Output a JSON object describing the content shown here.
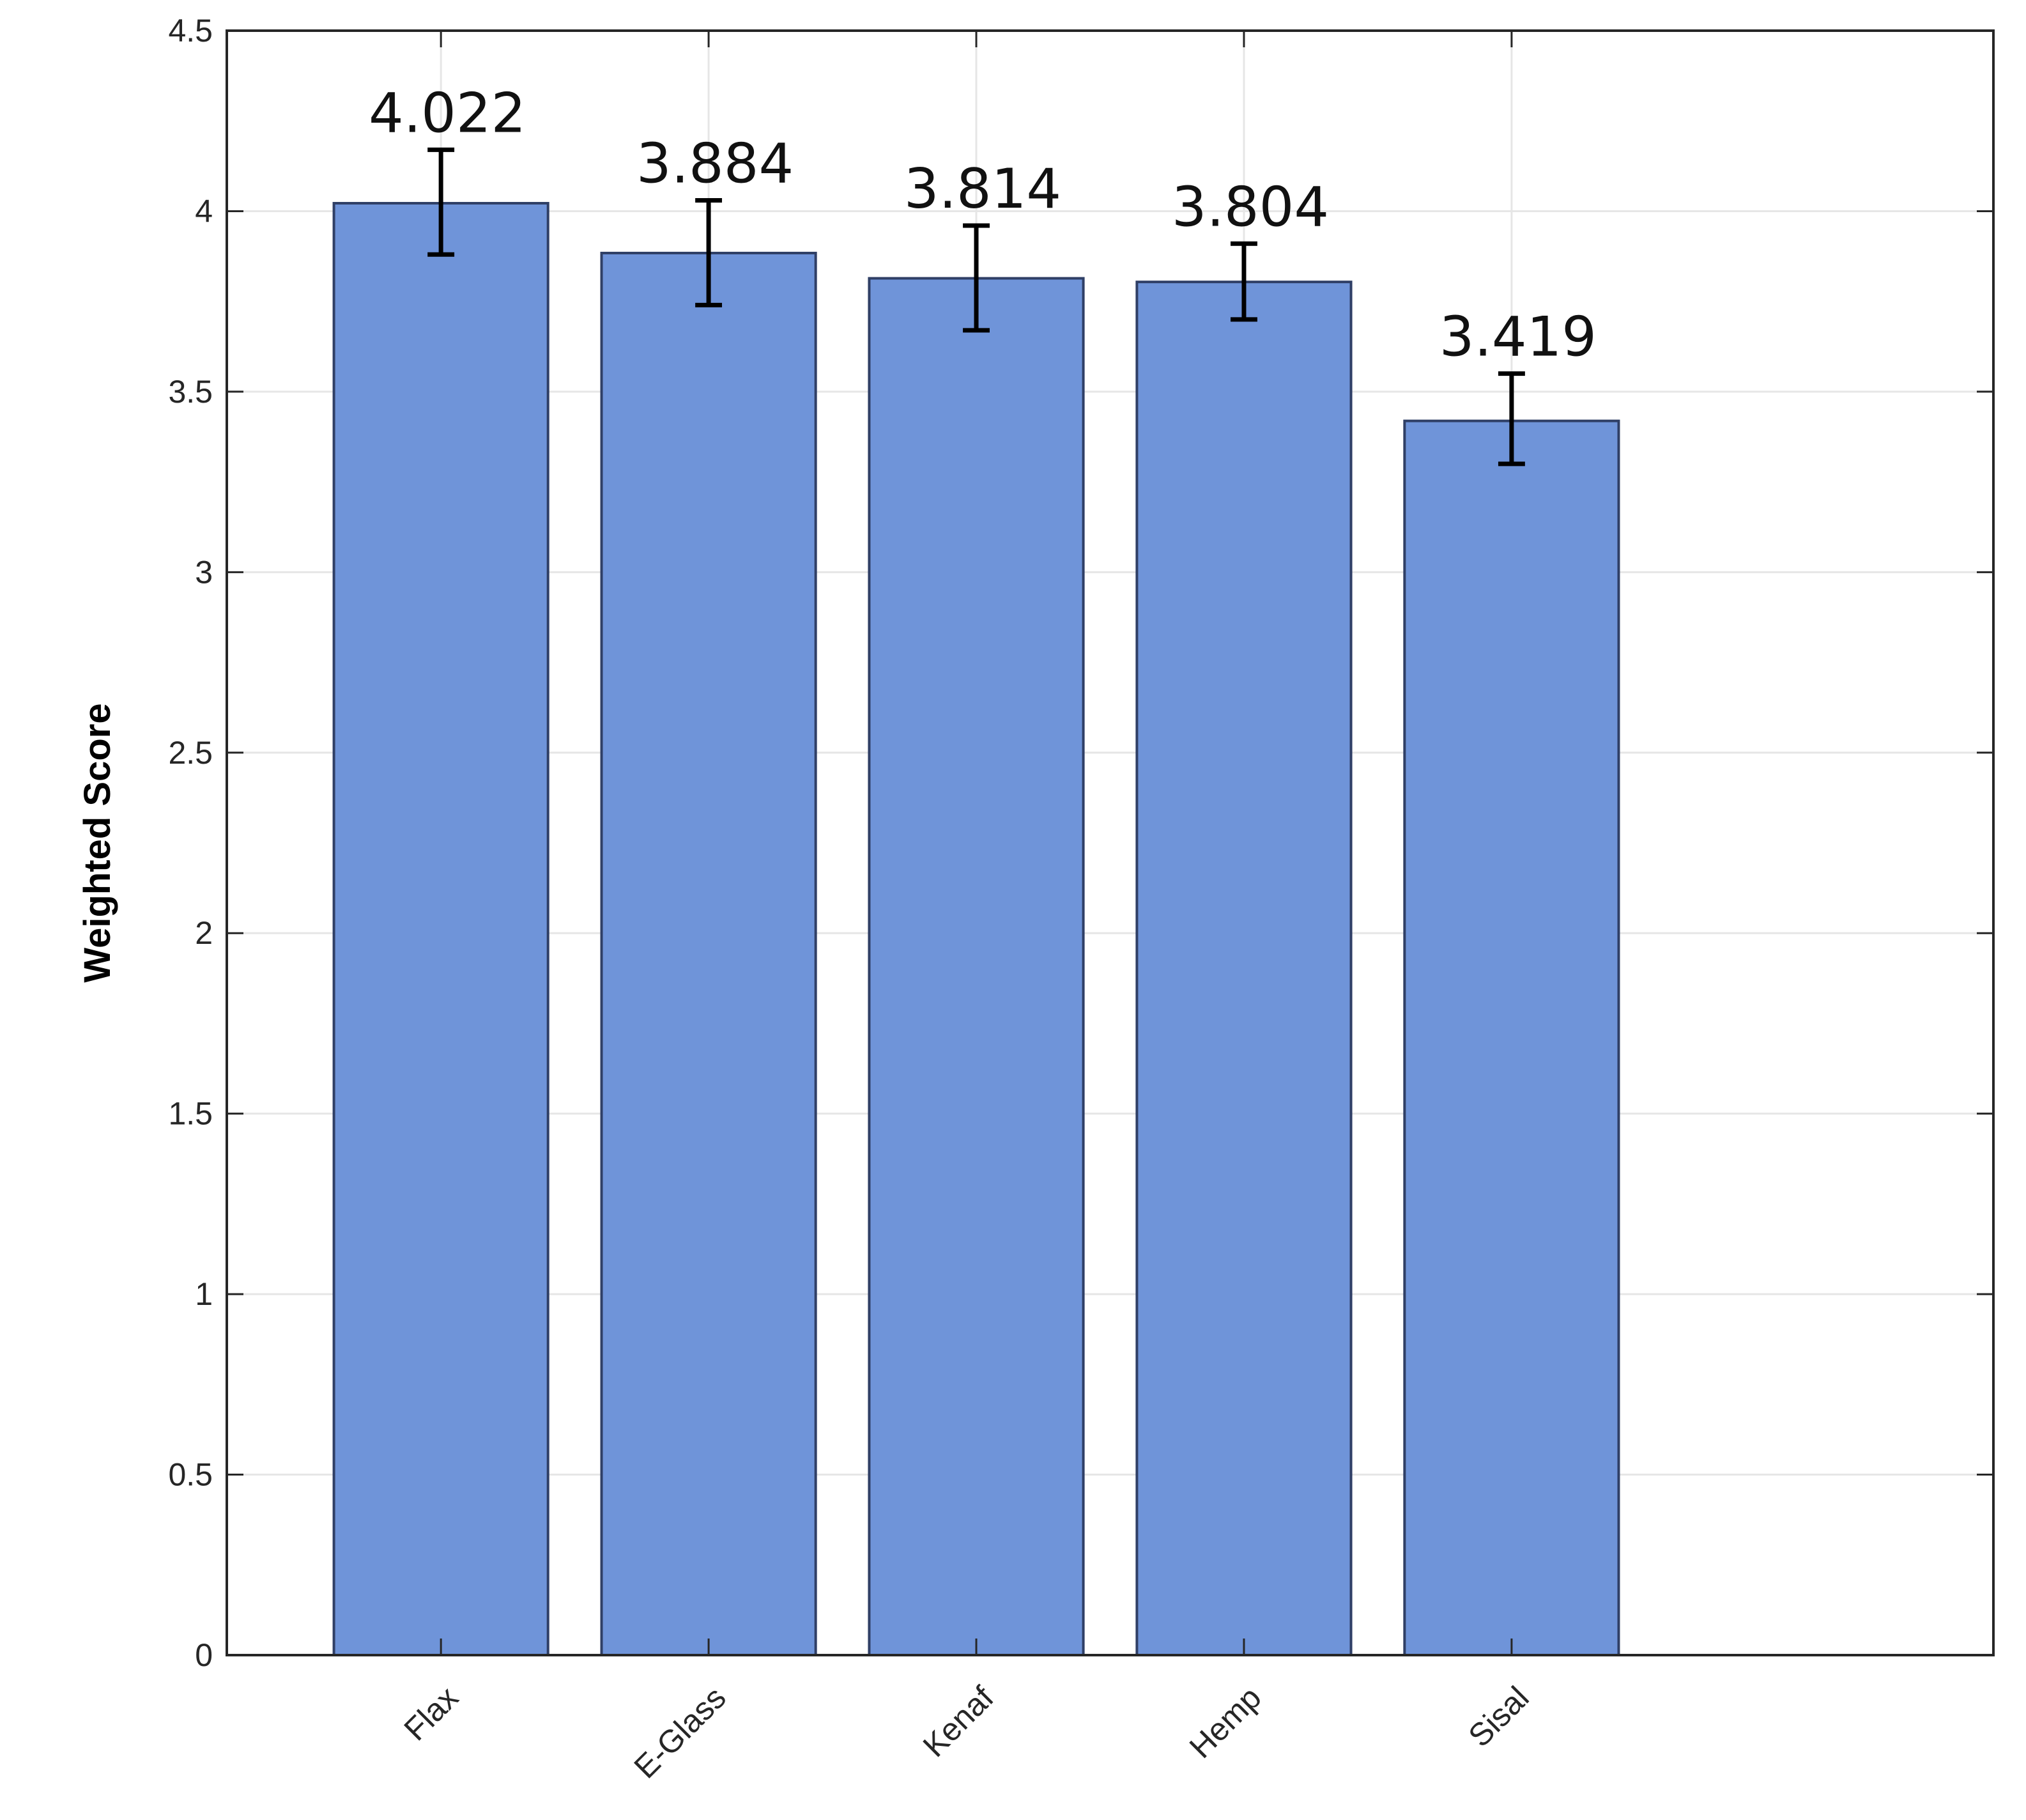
{
  "chart_data": {
    "type": "bar",
    "categories": [
      "Flax",
      "E-Glass",
      "Kenaf",
      "Hemp",
      "Sisal"
    ],
    "values": [
      4.022,
      3.884,
      3.814,
      3.804,
      3.419
    ],
    "value_labels": [
      "4.022",
      "3.884",
      "3.814",
      "3.804",
      "3.419"
    ],
    "error_bars": [
      {
        "low": 3.88,
        "high": 4.17
      },
      {
        "low": 3.74,
        "high": 4.03
      },
      {
        "low": 3.67,
        "high": 3.96
      },
      {
        "low": 3.7,
        "high": 3.91
      },
      {
        "low": 3.3,
        "high": 3.55
      }
    ],
    "title": "",
    "xlabel": "",
    "ylabel": "Weighted Score",
    "ylim": [
      0,
      4.5
    ],
    "yticks": [
      0,
      0.5,
      1,
      1.5,
      2,
      2.5,
      3,
      3.5,
      4,
      4.5
    ],
    "ytick_labels": [
      "0",
      "0.5",
      "1",
      "1.5",
      "2",
      "2.5",
      "3",
      "3.5",
      "4",
      "4.5"
    ],
    "x_range": [
      -0.8,
      5.8
    ],
    "grid": true,
    "bar_color": "#6f94d9",
    "bar_edge_color": "#2f3f66",
    "error_bar_color": "#000000",
    "gridline_color": "#e6e6e6"
  }
}
